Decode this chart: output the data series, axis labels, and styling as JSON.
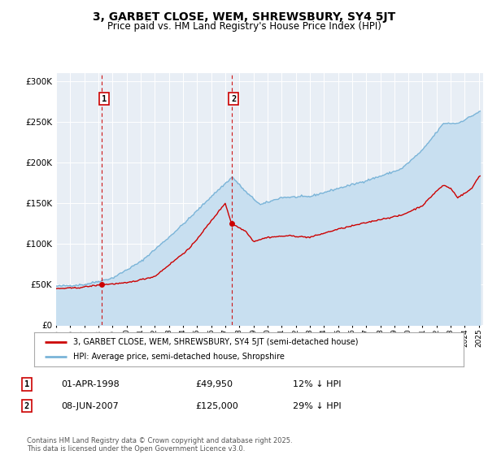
{
  "title": "3, GARBET CLOSE, WEM, SHREWSBURY, SY4 5JT",
  "subtitle": "Price paid vs. HM Land Registry's House Price Index (HPI)",
  "ylim": [
    0,
    310000
  ],
  "yticks": [
    0,
    50000,
    100000,
    150000,
    200000,
    250000,
    300000
  ],
  "ytick_labels": [
    "£0",
    "£50K",
    "£100K",
    "£150K",
    "£200K",
    "£250K",
    "£300K"
  ],
  "hpi_color": "#7ab4d8",
  "hpi_fill_color": "#c8dff0",
  "price_color": "#cc0000",
  "marker1_date": 1998.25,
  "marker1_price": 49950,
  "marker1_label": "01-APR-1998",
  "marker1_price_str": "£49,950",
  "marker1_pct": "12% ↓ HPI",
  "marker2_date": 2007.44,
  "marker2_price": 125000,
  "marker2_label": "08-JUN-2007",
  "marker2_price_str": "£125,000",
  "marker2_pct": "29% ↓ HPI",
  "legend_label_price": "3, GARBET CLOSE, WEM, SHREWSBURY, SY4 5JT (semi-detached house)",
  "legend_label_hpi": "HPI: Average price, semi-detached house, Shropshire",
  "footer": "Contains HM Land Registry data © Crown copyright and database right 2025.\nThis data is licensed under the Open Government Licence v3.0.",
  "background_color": "#e8eef5",
  "fig_bg": "#ffffff",
  "hpi_anchors_t": [
    1995.0,
    1997.0,
    1999.0,
    2001.0,
    2003.0,
    2004.5,
    2006.0,
    2007.5,
    2008.5,
    2009.5,
    2011.0,
    2013.0,
    2015.0,
    2016.5,
    2018.0,
    2019.5,
    2021.0,
    2022.5,
    2023.5,
    2024.5,
    2025.0
  ],
  "hpi_anchors_v": [
    48000,
    50000,
    58000,
    78000,
    108000,
    132000,
    158000,
    182000,
    163000,
    148000,
    157000,
    158000,
    168000,
    175000,
    183000,
    192000,
    215000,
    248000,
    248000,
    257000,
    262000
  ],
  "price_anchors_t": [
    1995.0,
    1996.5,
    1998.25,
    2000.0,
    2002.0,
    2004.5,
    2006.0,
    2007.0,
    2007.44,
    2008.5,
    2009.0,
    2010.0,
    2011.5,
    2013.0,
    2015.0,
    2016.5,
    2018.0,
    2019.5,
    2021.0,
    2022.0,
    2022.5,
    2023.0,
    2023.5,
    2024.0,
    2024.5,
    2025.0
  ],
  "price_anchors_v": [
    45000,
    46000,
    49950,
    52000,
    60000,
    95000,
    128000,
    150000,
    125000,
    115000,
    103000,
    108000,
    110000,
    108000,
    118000,
    124000,
    130000,
    135000,
    147000,
    165000,
    172000,
    168000,
    157000,
    162000,
    168000,
    183000
  ]
}
